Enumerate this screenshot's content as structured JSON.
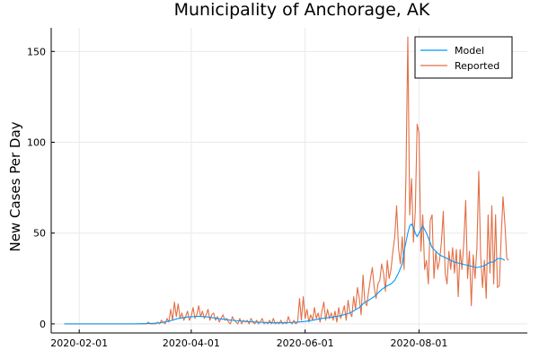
{
  "chart_data": {
    "type": "line",
    "title": "Municipality of Anchorage, AK",
    "xlabel": "",
    "ylabel": "New Cases Per Day",
    "x_axis_type": "date",
    "xlim": [
      "2020-01-17",
      "2020-09-28"
    ],
    "ylim": [
      -5,
      163
    ],
    "grid": true,
    "legend_position": "top-right",
    "x_ticks": [
      {
        "date": "2020-02-01",
        "label": "2020-02-01"
      },
      {
        "date": "2020-04-01",
        "label": "2020-04-01"
      },
      {
        "date": "2020-06-01",
        "label": "2020-06-01"
      },
      {
        "date": "2020-08-01",
        "label": "2020-08-01"
      }
    ],
    "y_ticks": [
      {
        "value": 0,
        "label": "0"
      },
      {
        "value": 50,
        "label": "50"
      },
      {
        "value": 100,
        "label": "100"
      },
      {
        "value": 150,
        "label": "150"
      }
    ],
    "series": [
      {
        "name": "Model",
        "color": "#009af9",
        "points": [
          [
            "2020-01-24",
            0
          ],
          [
            "2020-02-15",
            0
          ],
          [
            "2020-03-01",
            0
          ],
          [
            "2020-03-10",
            0.2
          ],
          [
            "2020-03-15",
            0.5
          ],
          [
            "2020-03-20",
            1.5
          ],
          [
            "2020-03-25",
            3
          ],
          [
            "2020-03-30",
            3.8
          ],
          [
            "2020-04-05",
            4.2
          ],
          [
            "2020-04-10",
            3.8
          ],
          [
            "2020-04-15",
            3
          ],
          [
            "2020-04-20",
            2.3
          ],
          [
            "2020-04-25",
            1.8
          ],
          [
            "2020-05-01",
            1.3
          ],
          [
            "2020-05-05",
            1
          ],
          [
            "2020-05-10",
            0.8
          ],
          [
            "2020-05-15",
            0.6
          ],
          [
            "2020-05-20",
            0.6
          ],
          [
            "2020-05-25",
            0.8
          ],
          [
            "2020-05-31",
            1.2
          ],
          [
            "2020-06-05",
            2
          ],
          [
            "2020-06-10",
            3
          ],
          [
            "2020-06-15",
            3.6
          ],
          [
            "2020-06-20",
            4.5
          ],
          [
            "2020-06-25",
            6
          ],
          [
            "2020-06-30",
            9
          ],
          [
            "2020-07-03",
            12
          ],
          [
            "2020-07-05",
            13
          ],
          [
            "2020-07-08",
            15
          ],
          [
            "2020-07-10",
            17
          ],
          [
            "2020-07-12",
            19
          ],
          [
            "2020-07-15",
            21
          ],
          [
            "2020-07-17",
            22
          ],
          [
            "2020-07-19",
            24
          ],
          [
            "2020-07-21",
            28
          ],
          [
            "2020-07-23",
            33
          ],
          [
            "2020-07-24",
            40
          ],
          [
            "2020-07-25",
            45
          ],
          [
            "2020-07-26",
            50
          ],
          [
            "2020-07-27",
            54
          ],
          [
            "2020-07-28",
            55
          ],
          [
            "2020-07-29",
            53
          ],
          [
            "2020-07-30",
            50
          ],
          [
            "2020-07-31",
            48
          ],
          [
            "2020-08-02",
            52
          ],
          [
            "2020-08-03",
            54
          ],
          [
            "2020-08-05",
            50
          ],
          [
            "2020-08-08",
            42
          ],
          [
            "2020-08-12",
            38
          ],
          [
            "2020-08-16",
            36
          ],
          [
            "2020-08-20",
            34
          ],
          [
            "2020-08-24",
            33
          ],
          [
            "2020-08-28",
            32
          ],
          [
            "2020-09-01",
            31
          ],
          [
            "2020-09-05",
            32
          ],
          [
            "2020-09-08",
            34
          ],
          [
            "2020-09-10",
            34
          ],
          [
            "2020-09-12",
            36
          ],
          [
            "2020-09-14",
            36
          ],
          [
            "2020-09-16",
            35
          ]
        ]
      },
      {
        "name": "Reported",
        "color": "#e26f46",
        "points": [
          [
            "2020-01-24",
            0
          ],
          [
            "2020-03-08",
            0
          ],
          [
            "2020-03-09",
            1
          ],
          [
            "2020-03-10",
            0
          ],
          [
            "2020-03-13",
            0
          ],
          [
            "2020-03-14",
            1
          ],
          [
            "2020-03-15",
            0
          ],
          [
            "2020-03-16",
            2
          ],
          [
            "2020-03-17",
            1
          ],
          [
            "2020-03-18",
            0
          ],
          [
            "2020-03-19",
            3
          ],
          [
            "2020-03-20",
            1
          ],
          [
            "2020-03-21",
            8
          ],
          [
            "2020-03-22",
            2
          ],
          [
            "2020-03-23",
            12
          ],
          [
            "2020-03-24",
            4
          ],
          [
            "2020-03-25",
            11
          ],
          [
            "2020-03-26",
            3
          ],
          [
            "2020-03-27",
            6
          ],
          [
            "2020-03-28",
            2
          ],
          [
            "2020-03-29",
            4
          ],
          [
            "2020-03-30",
            7
          ],
          [
            "2020-03-31",
            2
          ],
          [
            "2020-04-01",
            4
          ],
          [
            "2020-04-02",
            9
          ],
          [
            "2020-04-03",
            3
          ],
          [
            "2020-04-04",
            5
          ],
          [
            "2020-04-05",
            10
          ],
          [
            "2020-04-06",
            4
          ],
          [
            "2020-04-07",
            7
          ],
          [
            "2020-04-08",
            3
          ],
          [
            "2020-04-09",
            5
          ],
          [
            "2020-04-10",
            8
          ],
          [
            "2020-04-11",
            2
          ],
          [
            "2020-04-12",
            5
          ],
          [
            "2020-04-13",
            6
          ],
          [
            "2020-04-14",
            2
          ],
          [
            "2020-04-15",
            4
          ],
          [
            "2020-04-16",
            1
          ],
          [
            "2020-04-17",
            3
          ],
          [
            "2020-04-18",
            5
          ],
          [
            "2020-04-19",
            2
          ],
          [
            "2020-04-20",
            3
          ],
          [
            "2020-04-21",
            1
          ],
          [
            "2020-04-22",
            0
          ],
          [
            "2020-04-23",
            4
          ],
          [
            "2020-04-24",
            2
          ],
          [
            "2020-04-25",
            1
          ],
          [
            "2020-04-26",
            0
          ],
          [
            "2020-04-27",
            3
          ],
          [
            "2020-04-28",
            0
          ],
          [
            "2020-04-29",
            2
          ],
          [
            "2020-04-30",
            1
          ],
          [
            "2020-05-01",
            2
          ],
          [
            "2020-05-02",
            0
          ],
          [
            "2020-05-03",
            3
          ],
          [
            "2020-05-04",
            1
          ],
          [
            "2020-05-05",
            0
          ],
          [
            "2020-05-06",
            2
          ],
          [
            "2020-05-07",
            0
          ],
          [
            "2020-05-08",
            1
          ],
          [
            "2020-05-09",
            3
          ],
          [
            "2020-05-10",
            0
          ],
          [
            "2020-05-11",
            1
          ],
          [
            "2020-05-12",
            0
          ],
          [
            "2020-05-13",
            2
          ],
          [
            "2020-05-14",
            0
          ],
          [
            "2020-05-15",
            3
          ],
          [
            "2020-05-16",
            0
          ],
          [
            "2020-05-17",
            1
          ],
          [
            "2020-05-18",
            0
          ],
          [
            "2020-05-19",
            2
          ],
          [
            "2020-05-20",
            0
          ],
          [
            "2020-05-21",
            1
          ],
          [
            "2020-05-22",
            0
          ],
          [
            "2020-05-23",
            4
          ],
          [
            "2020-05-24",
            1
          ],
          [
            "2020-05-25",
            0
          ],
          [
            "2020-05-26",
            2
          ],
          [
            "2020-05-27",
            0
          ],
          [
            "2020-05-28",
            1
          ],
          [
            "2020-05-29",
            14
          ],
          [
            "2020-05-30",
            2
          ],
          [
            "2020-05-31",
            15
          ],
          [
            "2020-06-01",
            3
          ],
          [
            "2020-06-02",
            8
          ],
          [
            "2020-06-03",
            1
          ],
          [
            "2020-06-04",
            5
          ],
          [
            "2020-06-05",
            2
          ],
          [
            "2020-06-06",
            9
          ],
          [
            "2020-06-07",
            3
          ],
          [
            "2020-06-08",
            6
          ],
          [
            "2020-06-09",
            1
          ],
          [
            "2020-06-10",
            7
          ],
          [
            "2020-06-11",
            12
          ],
          [
            "2020-06-12",
            2
          ],
          [
            "2020-06-13",
            8
          ],
          [
            "2020-06-14",
            3
          ],
          [
            "2020-06-15",
            6
          ],
          [
            "2020-06-16",
            2
          ],
          [
            "2020-06-17",
            7
          ],
          [
            "2020-06-18",
            1
          ],
          [
            "2020-06-19",
            9
          ],
          [
            "2020-06-20",
            3
          ],
          [
            "2020-06-21",
            6
          ],
          [
            "2020-06-22",
            10
          ],
          [
            "2020-06-23",
            2
          ],
          [
            "2020-06-24",
            13
          ],
          [
            "2020-06-25",
            6
          ],
          [
            "2020-06-26",
            4
          ],
          [
            "2020-06-27",
            15
          ],
          [
            "2020-06-28",
            8
          ],
          [
            "2020-06-29",
            20
          ],
          [
            "2020-06-30",
            14
          ],
          [
            "2020-07-01",
            5
          ],
          [
            "2020-07-02",
            27
          ],
          [
            "2020-07-03",
            12
          ],
          [
            "2020-07-04",
            10
          ],
          [
            "2020-07-05",
            18
          ],
          [
            "2020-07-06",
            25
          ],
          [
            "2020-07-07",
            31
          ],
          [
            "2020-07-08",
            20
          ],
          [
            "2020-07-09",
            14
          ],
          [
            "2020-07-10",
            22
          ],
          [
            "2020-07-11",
            24
          ],
          [
            "2020-07-12",
            33
          ],
          [
            "2020-07-13",
            28
          ],
          [
            "2020-07-14",
            18
          ],
          [
            "2020-07-15",
            35
          ],
          [
            "2020-07-16",
            25
          ],
          [
            "2020-07-17",
            30
          ],
          [
            "2020-07-18",
            40
          ],
          [
            "2020-07-19",
            48
          ],
          [
            "2020-07-20",
            65
          ],
          [
            "2020-07-21",
            42
          ],
          [
            "2020-07-22",
            33
          ],
          [
            "2020-07-23",
            48
          ],
          [
            "2020-07-24",
            30
          ],
          [
            "2020-07-25",
            82
          ],
          [
            "2020-07-26",
            158
          ],
          [
            "2020-07-27",
            60
          ],
          [
            "2020-07-28",
            80
          ],
          [
            "2020-07-29",
            45
          ],
          [
            "2020-07-30",
            62
          ],
          [
            "2020-07-31",
            110
          ],
          [
            "2020-08-01",
            105
          ],
          [
            "2020-08-02",
            40
          ],
          [
            "2020-08-03",
            60
          ],
          [
            "2020-08-04",
            30
          ],
          [
            "2020-08-05",
            35
          ],
          [
            "2020-08-06",
            22
          ],
          [
            "2020-08-07",
            57
          ],
          [
            "2020-08-08",
            60
          ],
          [
            "2020-08-09",
            25
          ],
          [
            "2020-08-10",
            40
          ],
          [
            "2020-08-11",
            30
          ],
          [
            "2020-08-12",
            35
          ],
          [
            "2020-08-13",
            45
          ],
          [
            "2020-08-14",
            62
          ],
          [
            "2020-08-15",
            28
          ],
          [
            "2020-08-16",
            22
          ],
          [
            "2020-08-17",
            40
          ],
          [
            "2020-08-18",
            30
          ],
          [
            "2020-08-19",
            42
          ],
          [
            "2020-08-20",
            28
          ],
          [
            "2020-08-21",
            41
          ],
          [
            "2020-08-22",
            15
          ],
          [
            "2020-08-23",
            41
          ],
          [
            "2020-08-24",
            30
          ],
          [
            "2020-08-25",
            45
          ],
          [
            "2020-08-26",
            68
          ],
          [
            "2020-08-27",
            25
          ],
          [
            "2020-08-28",
            40
          ],
          [
            "2020-08-29",
            10
          ],
          [
            "2020-08-30",
            38
          ],
          [
            "2020-08-31",
            25
          ],
          [
            "2020-09-01",
            42
          ],
          [
            "2020-09-02",
            84
          ],
          [
            "2020-09-03",
            38
          ],
          [
            "2020-09-04",
            20
          ],
          [
            "2020-09-05",
            35
          ],
          [
            "2020-09-06",
            14
          ],
          [
            "2020-09-07",
            60
          ],
          [
            "2020-09-08",
            28
          ],
          [
            "2020-09-09",
            65
          ],
          [
            "2020-09-10",
            22
          ],
          [
            "2020-09-11",
            60
          ],
          [
            "2020-09-12",
            20
          ],
          [
            "2020-09-13",
            21
          ],
          [
            "2020-09-14",
            48
          ],
          [
            "2020-09-15",
            70
          ],
          [
            "2020-09-16",
            55
          ],
          [
            "2020-09-17",
            36
          ],
          [
            "2020-09-18",
            35
          ]
        ]
      }
    ]
  }
}
